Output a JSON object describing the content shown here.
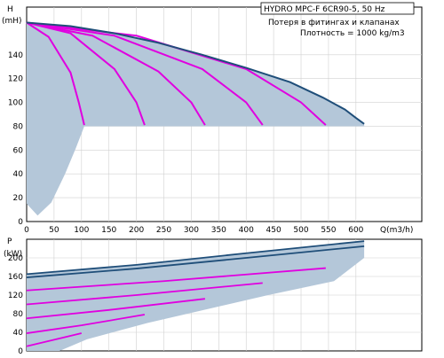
{
  "chart_data": [
    {
      "type": "area",
      "title": "HYDRO MPC-F 6CR90-5, 50 Hz",
      "notes": [
        "Потеря в фитингах и клапанах",
        "Плотность = 1000 kg/m3"
      ],
      "ylabel": "H",
      "yunit": "(mH)",
      "xlabel": "Q(m3/h)",
      "xlim": [
        0,
        720
      ],
      "ylim": [
        0,
        180
      ],
      "xticks": [
        0,
        50,
        100,
        150,
        200,
        250,
        300,
        350,
        400,
        450,
        500,
        550,
        600
      ],
      "yticks": [
        0,
        20,
        40,
        60,
        80,
        100,
        120,
        140
      ],
      "grid": true,
      "colors": {
        "envelope": "#1f4e79",
        "pump_curves": "#e000e0",
        "area": "#b4c7d9"
      },
      "envelope": {
        "name": "max",
        "x": [
          0,
          80,
          160,
          240,
          320,
          400,
          480,
          540,
          580,
          600,
          615
        ],
        "y": [
          167,
          164,
          158,
          150,
          140,
          129,
          117,
          104,
          94,
          87,
          82
        ]
      },
      "min_head": 80,
      "series": [
        {
          "x": [
            0,
            40,
            80,
            95,
            105
          ],
          "y": [
            167,
            155,
            125,
            100,
            81
          ]
        },
        {
          "x": [
            0,
            80,
            160,
            200,
            215
          ],
          "y": [
            167,
            158,
            128,
            100,
            81
          ]
        },
        {
          "x": [
            0,
            120,
            240,
            300,
            325
          ],
          "y": [
            167,
            156,
            126,
            100,
            81
          ]
        },
        {
          "x": [
            0,
            160,
            320,
            400,
            430
          ],
          "y": [
            167,
            156,
            128,
            100,
            81
          ]
        },
        {
          "x": [
            0,
            200,
            400,
            500,
            545
          ],
          "y": [
            167,
            156,
            128,
            100,
            81
          ]
        }
      ],
      "low_boundary": {
        "x": [
          0,
          20,
          45,
          70,
          90,
          105
        ],
        "y": [
          15,
          5,
          16,
          40,
          62,
          81
        ]
      }
    },
    {
      "type": "area",
      "ylabel": "P",
      "yunit": "(kW)",
      "xlim": [
        0,
        720
      ],
      "ylim": [
        0,
        240
      ],
      "yticks": [
        0,
        40,
        80,
        120,
        160,
        200
      ],
      "grid": true,
      "envelope": [
        {
          "name": "upper",
          "x": [
            0,
            200,
            400,
            615
          ],
          "y": [
            165,
            185,
            210,
            236
          ]
        },
        {
          "name": "lower",
          "x": [
            0,
            200,
            400,
            615
          ],
          "y": [
            158,
            177,
            200,
            225
          ]
        }
      ],
      "series": [
        {
          "x": [
            0,
            100
          ],
          "y": [
            10,
            38
          ]
        },
        {
          "x": [
            0,
            100,
            215
          ],
          "y": [
            38,
            55,
            78
          ]
        },
        {
          "x": [
            0,
            150,
            325
          ],
          "y": [
            70,
            88,
            112
          ]
        },
        {
          "x": [
            0,
            200,
            430
          ],
          "y": [
            100,
            120,
            146
          ]
        },
        {
          "x": [
            0,
            250,
            545
          ],
          "y": [
            130,
            150,
            178
          ]
        }
      ]
    }
  ]
}
